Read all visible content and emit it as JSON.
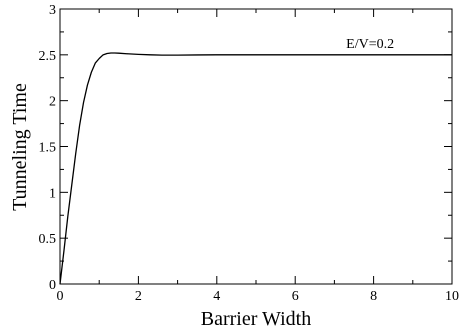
{
  "chart_data": {
    "type": "line",
    "xlabel": "Barrier Width",
    "ylabel": "Tunneling Time",
    "xlim": [
      0,
      10
    ],
    "ylim": [
      0,
      3
    ],
    "xticks": [
      0,
      2,
      4,
      6,
      8,
      10
    ],
    "yticks": [
      0,
      0.5,
      1,
      1.5,
      2,
      2.5,
      3
    ],
    "xtick_labels": [
      "0",
      "2",
      "4",
      "6",
      "8",
      "10"
    ],
    "ytick_labels": [
      "0",
      "0.5",
      "1",
      "1.5",
      "2",
      "2.5",
      "3"
    ],
    "grid": false,
    "annotations": [
      {
        "text": "E/V=0.2",
        "x": 7.3,
        "y": 2.5
      }
    ],
    "series": [
      {
        "color": "#000000",
        "x": [
          0,
          0.05,
          0.1,
          0.15,
          0.2,
          0.3,
          0.4,
          0.5,
          0.6,
          0.7,
          0.8,
          0.9,
          1.0,
          1.1,
          1.2,
          1.3,
          1.4,
          1.5,
          1.7,
          2.0,
          2.3,
          2.6,
          3.0,
          3.5,
          4.0,
          5.0,
          6.0,
          7.0,
          8.0,
          9.0,
          10.0
        ],
        "y": [
          0,
          0.18,
          0.36,
          0.55,
          0.74,
          1.08,
          1.42,
          1.73,
          1.98,
          2.17,
          2.31,
          2.41,
          2.46,
          2.5,
          2.515,
          2.52,
          2.52,
          2.518,
          2.512,
          2.505,
          2.5,
          2.497,
          2.497,
          2.499,
          2.5,
          2.5,
          2.5,
          2.5,
          2.5,
          2.5,
          2.5
        ]
      }
    ]
  }
}
